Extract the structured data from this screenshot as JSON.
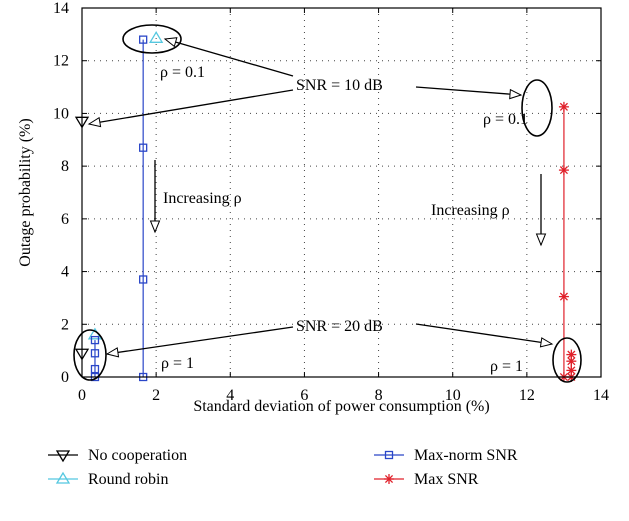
{
  "chart_data": {
    "type": "line",
    "title": "",
    "xlabel": "Standard deviation of power consumption (%)",
    "ylabel": "Outage probability (%)",
    "xlim": [
      0,
      14
    ],
    "ylim": [
      0,
      14
    ],
    "xticks": [
      "0",
      "2",
      "4",
      "6",
      "8",
      "10",
      "12",
      "14"
    ],
    "yticks": [
      "0",
      "2",
      "4",
      "6",
      "8",
      "10",
      "12",
      "14"
    ],
    "grid": true,
    "legend_position": "below plot",
    "series": [
      {
        "name": "No cooperation",
        "marker": "triangle-down",
        "color": "#000000",
        "points": [
          [
            0.0,
            9.7
          ],
          [
            0.0,
            0.9
          ]
        ]
      },
      {
        "name": "Round robin",
        "marker": "triangle-up",
        "color": "#55c8e0",
        "points": [
          [
            2.0,
            12.85
          ],
          [
            0.35,
            1.6
          ]
        ]
      },
      {
        "name": "Max-norm SNR",
        "marker": "square",
        "color": "#2a46c8",
        "groups": [
          [
            [
              1.65,
              12.8
            ],
            [
              1.65,
              8.7
            ],
            [
              1.65,
              3.7
            ],
            [
              1.65,
              0.0
            ]
          ],
          [
            [
              0.35,
              1.4
            ],
            [
              0.35,
              0.9
            ],
            [
              0.35,
              0.3
            ],
            [
              0.35,
              0.0
            ]
          ]
        ]
      },
      {
        "name": "Max SNR",
        "marker": "asterisk",
        "color": "#e0202a",
        "groups": [
          [
            [
              13.0,
              10.25
            ],
            [
              13.0,
              7.85
            ],
            [
              13.0,
              3.05
            ],
            [
              13.0,
              0.0
            ]
          ],
          [
            [
              13.2,
              0.85
            ],
            [
              13.2,
              0.6
            ],
            [
              13.2,
              0.25
            ],
            [
              13.2,
              0.0
            ]
          ]
        ]
      }
    ],
    "annotations": {
      "snr10": "SNR = 10 dB",
      "snr20": "SNR = 20 dB",
      "rho01_left": "ρ = 0.1",
      "rho01_right": "ρ = 0.1",
      "rho1_left": "ρ = 1",
      "rho1_right": "ρ = 1",
      "inc_left": "Increasing ρ",
      "inc_right": "Increasing ρ"
    }
  }
}
